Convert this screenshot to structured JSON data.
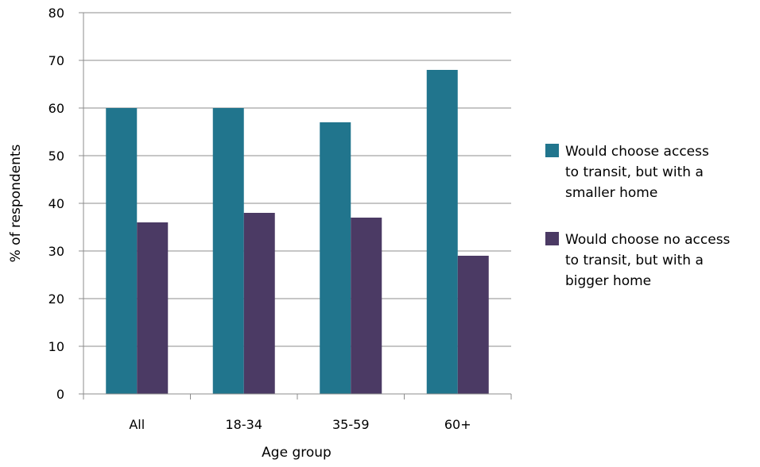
{
  "chart_data": {
    "type": "bar",
    "categories": [
      "All",
      "18-34",
      "35-59",
      "60+"
    ],
    "series": [
      {
        "name": "Would choose access to transit, but with a smaller home",
        "values": [
          60,
          60,
          57,
          68
        ],
        "color": "#21758d"
      },
      {
        "name": "Would choose no access to transit, but with a bigger home",
        "values": [
          36,
          38,
          37,
          29
        ],
        "color": "#4b3a64"
      }
    ],
    "xlabel": "Age group",
    "ylabel": "% of respondents",
    "ylim": [
      0,
      80
    ],
    "yticks": [
      0,
      10,
      20,
      30,
      40,
      50,
      60,
      70,
      80
    ],
    "grid": true,
    "legend_position": "right"
  }
}
